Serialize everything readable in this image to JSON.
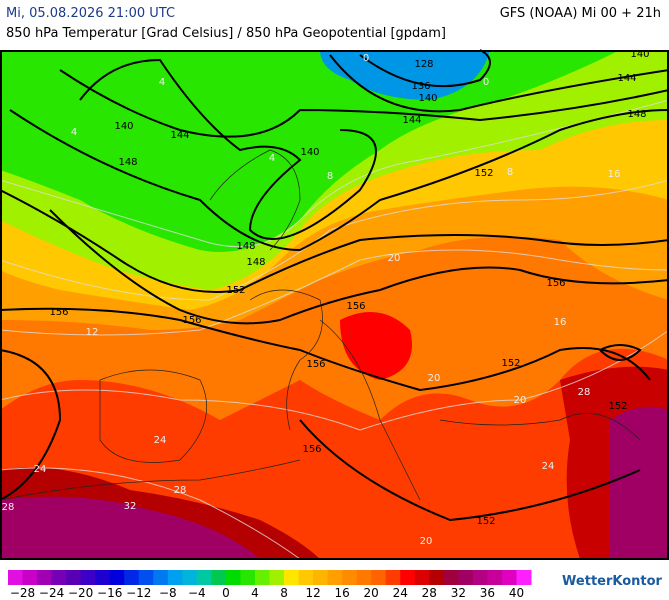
{
  "header": {
    "valid_time": "Mi, 05.08.2026 21:00 UTC",
    "model_run": "GFS (NOAA) Mi 00 + 21h",
    "subtitle": "850 hPa Temperatur [Grad Celsius] / 850 hPa Geopotential [gpdam]"
  },
  "map": {
    "geopotential_labels": [
      "128",
      "136",
      "140",
      "140",
      "140",
      "144",
      "144",
      "144",
      "148",
      "148",
      "148",
      "148",
      "152",
      "152",
      "152",
      "152",
      "156",
      "156",
      "156",
      "156",
      "156",
      "156",
      "152",
      "140"
    ],
    "temperature_labels": [
      "4",
      "4",
      "4",
      "8",
      "8",
      "12",
      "16",
      "16",
      "20",
      "20",
      "20",
      "20",
      "24",
      "24",
      "24",
      "28",
      "28",
      "28",
      "32",
      "0",
      "0"
    ]
  },
  "colorbar": {
    "labels": [
      "−28",
      "−24",
      "−20",
      "−16",
      "−12",
      "−8",
      "−4",
      "0",
      "4",
      "8",
      "12",
      "16",
      "20",
      "24",
      "28",
      "32",
      "36",
      "40"
    ],
    "colors": [
      "#e010e0",
      "#c800c8",
      "#a000b4",
      "#7800b4",
      "#5a00b4",
      "#3c00c8",
      "#1e00d2",
      "#0000dc",
      "#0028e6",
      "#0050f0",
      "#0078f0",
      "#00a0f0",
      "#00b4dc",
      "#00c8a0",
      "#00c850",
      "#00dc00",
      "#28e600",
      "#64f000",
      "#a0f000",
      "#ffe600",
      "#ffc800",
      "#ffb400",
      "#ffa000",
      "#ff8c00",
      "#ff7800",
      "#ff6400",
      "#ff3c00",
      "#ff0000",
      "#dc0000",
      "#b40000",
      "#a0003c",
      "#a00064",
      "#b40082",
      "#c8009a",
      "#e000c0",
      "#ff20ff"
    ]
  },
  "logo": "WetterKontor"
}
